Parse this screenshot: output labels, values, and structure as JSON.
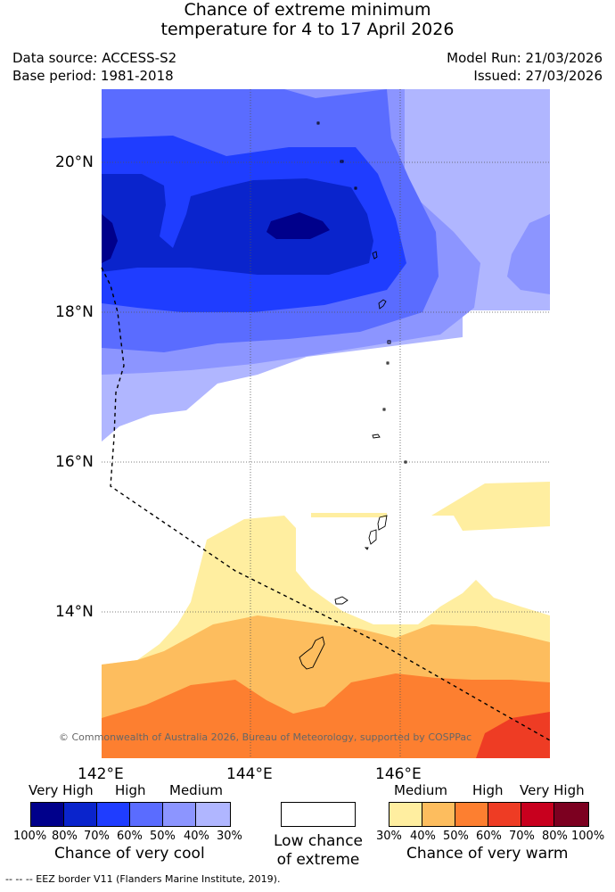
{
  "title": {
    "line1": "Chance of extreme minimum",
    "line2": "temperature for 4 to 17 April 2026"
  },
  "meta": {
    "data_source": "Data source: ACCESS-S2",
    "base_period": "Base period: 1981-2018",
    "model_run": "Model Run: 21/03/2026",
    "issued": "Issued: 27/03/2026"
  },
  "map": {
    "lat_labels": [
      "20°N",
      "18°N",
      "16°N",
      "14°N"
    ],
    "lon_labels": [
      "142°E",
      "144°E",
      "146°E"
    ],
    "copyright": "© Commonwealth of Australia 2026, Bureau of Meteorology, supported by COSPPac"
  },
  "legend": {
    "cool": {
      "cat_very_high": "Very High",
      "cat_high": "High",
      "cat_medium": "Medium",
      "percents": [
        "100%",
        "80%",
        "70%",
        "60%",
        "50%",
        "40%",
        "30%"
      ],
      "caption": "Chance of very cool",
      "colors": [
        "#00008b",
        "#0a24cc",
        "#1f3dff",
        "#5a6cff",
        "#8c95ff",
        "#b0b6ff"
      ]
    },
    "neutral": {
      "caption_line1": "Low chance",
      "caption_line2": "of extreme"
    },
    "warm": {
      "cat_medium": "Medium",
      "cat_high": "High",
      "cat_very_high": "Very High",
      "percents": [
        "30%",
        "40%",
        "50%",
        "60%",
        "70%",
        "80%",
        "100%"
      ],
      "caption": "Chance of very warm",
      "colors": [
        "#ffeea0",
        "#fdbd5e",
        "#fd7f30",
        "#ee3c24",
        "#c8001e",
        "#7c0020"
      ]
    }
  },
  "eez_note": "--  --  -- EEZ border V11 (Flanders Marine Institute, 2019)."
}
